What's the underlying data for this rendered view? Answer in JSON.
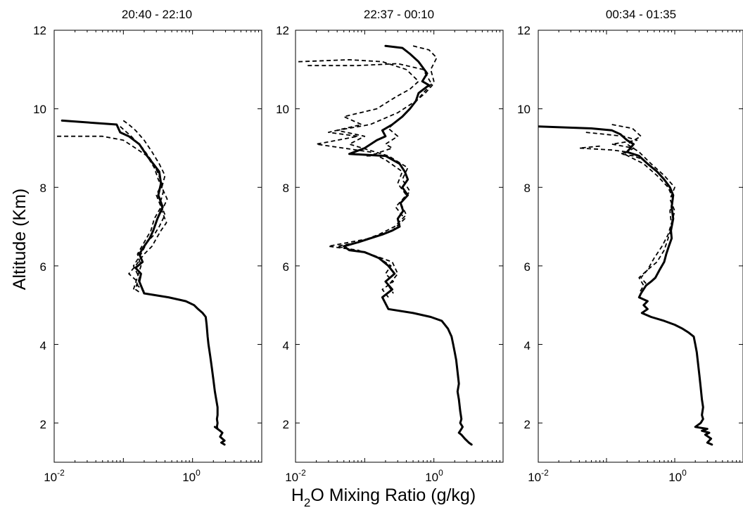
{
  "figure": {
    "ylabel": "Altitude (Km)",
    "xlabel_prefix": "H",
    "xlabel_sub": "2",
    "xlabel_suffix": "O Mixing Ratio (g/kg)"
  },
  "chart_data": [
    {
      "type": "line",
      "title": "20:40 - 22:10",
      "xscale": "log",
      "xlim": [
        0.01,
        10
      ],
      "ylim": [
        1,
        12
      ],
      "x_ticks": [
        {
          "base": "10",
          "exp": "-2"
        },
        {
          "base": "10",
          "exp": "0"
        }
      ],
      "y_ticks": [
        "2",
        "4",
        "6",
        "8",
        "10",
        "12"
      ],
      "series": [
        {
          "style": "solid",
          "x": [
            0.013,
            0.08,
            0.09,
            0.12,
            0.17,
            0.22,
            0.27,
            0.33,
            0.35,
            0.32,
            0.37,
            0.31,
            0.27,
            0.24,
            0.2,
            0.17,
            0.19,
            0.15,
            0.18,
            0.17,
            0.2,
            0.45,
            0.8,
            1.05,
            1.2,
            1.4,
            1.55,
            1.6,
            1.65,
            1.7,
            1.8,
            1.9,
            2.0,
            2.1,
            2.2,
            2.3,
            2.3,
            2.3,
            2.25,
            2.3,
            2.25,
            2.3,
            2.1,
            2.5,
            2.7,
            2.5,
            2.9,
            2.6,
            2.9
          ],
          "y": [
            9.7,
            9.6,
            9.4,
            9.3,
            9.1,
            8.8,
            8.6,
            8.4,
            8.1,
            7.8,
            7.5,
            7.2,
            6.9,
            6.7,
            6.5,
            6.3,
            6.1,
            5.95,
            5.8,
            5.6,
            5.3,
            5.2,
            5.1,
            5.0,
            4.9,
            4.8,
            4.7,
            4.5,
            4.2,
            4.0,
            3.7,
            3.4,
            3.1,
            2.8,
            2.6,
            2.4,
            2.3,
            2.2,
            2.1,
            2.0,
            1.9,
            1.85,
            1.9,
            1.8,
            1.75,
            1.65,
            1.55,
            1.5,
            1.45
          ]
        },
        {
          "style": "dashed",
          "x": [
            0.011,
            0.05,
            0.1,
            0.15,
            0.22,
            0.28,
            0.32,
            0.38,
            0.34,
            0.4,
            0.33,
            0.28,
            0.22,
            0.18,
            0.14,
            0.17,
            0.16,
            0.2
          ],
          "y": [
            9.3,
            9.3,
            9.2,
            9.0,
            8.8,
            8.5,
            8.2,
            7.9,
            7.6,
            7.3,
            7.0,
            6.8,
            6.6,
            6.3,
            6.0,
            5.7,
            5.5,
            5.35
          ]
        },
        {
          "style": "dashed",
          "x": [
            0.1,
            0.12,
            0.15,
            0.2,
            0.26,
            0.33,
            0.4,
            0.36,
            0.43,
            0.36,
            0.42,
            0.35,
            0.3,
            0.26,
            0.2,
            0.15,
            0.12,
            0.16,
            0.15,
            0.18
          ],
          "y": [
            9.7,
            9.6,
            9.45,
            9.2,
            8.9,
            8.6,
            8.3,
            8.0,
            7.7,
            7.4,
            7.1,
            6.9,
            6.7,
            6.5,
            6.3,
            6.0,
            5.8,
            5.6,
            5.4,
            5.3
          ]
        },
        {
          "style": "dashed",
          "x": [
            0.09,
            0.13,
            0.19,
            0.25,
            0.31,
            0.36,
            0.3,
            0.35,
            0.28,
            0.25,
            0.2,
            0.16,
            0.18,
            0.14
          ],
          "y": [
            9.55,
            9.3,
            9.0,
            8.7,
            8.4,
            8.1,
            7.8,
            7.5,
            7.2,
            6.9,
            6.6,
            6.3,
            6.0,
            5.4
          ]
        }
      ]
    },
    {
      "type": "line",
      "title": "22:37 - 00:10",
      "xscale": "log",
      "xlim": [
        0.01,
        10
      ],
      "ylim": [
        1,
        12
      ],
      "x_ticks": [
        {
          "base": "10",
          "exp": "-2"
        },
        {
          "base": "10",
          "exp": "0"
        }
      ],
      "y_ticks": [
        "2",
        "4",
        "6",
        "8",
        "10",
        "12"
      ],
      "series": [
        {
          "style": "solid",
          "x": [
            0.2,
            0.35,
            0.45,
            0.6,
            0.8,
            0.68,
            0.85,
            0.6,
            0.55,
            0.45,
            0.35,
            0.25,
            0.18,
            0.2,
            0.15,
            0.1,
            0.06,
            0.2,
            0.32,
            0.38,
            0.42,
            0.35,
            0.42,
            0.33,
            0.36,
            0.3,
            0.32,
            0.25,
            0.18,
            0.12,
            0.08,
            0.05,
            0.06,
            0.1,
            0.16,
            0.22,
            0.27,
            0.2,
            0.25,
            0.18,
            0.22,
            0.5,
            0.9,
            1.3,
            1.6,
            1.8,
            1.9,
            2.0,
            2.1,
            2.2,
            2.3,
            2.2,
            2.3,
            2.4,
            2.5,
            2.4,
            2.6,
            2.5,
            2.4,
            2.3,
            2.5,
            2.8,
            3.2,
            3.5
          ],
          "y": [
            11.6,
            11.55,
            11.4,
            11.2,
            10.9,
            10.7,
            10.6,
            10.4,
            10.2,
            10.0,
            9.8,
            9.6,
            9.45,
            9.3,
            9.2,
            9.0,
            8.85,
            8.8,
            8.6,
            8.4,
            8.2,
            8.0,
            7.8,
            7.6,
            7.4,
            7.2,
            7.0,
            6.9,
            6.8,
            6.7,
            6.6,
            6.5,
            6.4,
            6.35,
            6.2,
            6.0,
            5.8,
            5.6,
            5.4,
            5.2,
            4.9,
            4.8,
            4.7,
            4.6,
            4.4,
            4.2,
            4.0,
            3.8,
            3.6,
            3.3,
            3.0,
            2.8,
            2.6,
            2.3,
            2.1,
            2.0,
            1.9,
            1.85,
            1.8,
            1.75,
            1.7,
            1.6,
            1.5,
            1.45
          ]
        },
        {
          "style": "dashed",
          "x": [
            0.011,
            0.06,
            0.18,
            0.4,
            0.6,
            0.45,
            0.28,
            0.15,
            0.05,
            0.09,
            0.03,
            0.08,
            0.02,
            0.12,
            0.2,
            0.35,
            0.3,
            0.4,
            0.28,
            0.38,
            0.25,
            0.12,
            0.06,
            0.03,
            0.08,
            0.16,
            0.24,
            0.2,
            0.26,
            0.18,
            0.22
          ],
          "y": [
            11.2,
            11.25,
            11.2,
            11.0,
            10.7,
            10.5,
            10.3,
            10.0,
            9.8,
            9.6,
            9.4,
            9.3,
            9.1,
            8.9,
            8.7,
            8.4,
            8.1,
            7.8,
            7.5,
            7.2,
            6.9,
            6.7,
            6.6,
            6.5,
            6.4,
            6.2,
            6.0,
            5.8,
            5.6,
            5.4,
            5.2
          ]
        },
        {
          "style": "dashed",
          "x": [
            0.015,
            0.08,
            0.3,
            0.7,
            0.95,
            0.75,
            0.55,
            0.3,
            0.12,
            0.04,
            0.1,
            0.06,
            0.22,
            0.42,
            0.35,
            0.45,
            0.33,
            0.4,
            0.27,
            0.16,
            0.08,
            0.04,
            0.12,
            0.25,
            0.3,
            0.22,
            0.26
          ],
          "y": [
            11.1,
            11.1,
            11.15,
            11.0,
            10.6,
            10.4,
            10.2,
            9.9,
            9.6,
            9.45,
            9.3,
            9.1,
            8.8,
            8.5,
            8.2,
            7.9,
            7.6,
            7.3,
            7.0,
            6.8,
            6.6,
            6.5,
            6.3,
            6.1,
            5.8,
            5.5,
            5.3
          ]
        },
        {
          "style": "dashed",
          "x": [
            0.5,
            0.85,
            1.1,
            0.9,
            1.0,
            0.7,
            0.5,
            0.35,
            0.22,
            0.3,
            0.2,
            0.25,
            0.17,
            0.12,
            0.1
          ],
          "y": [
            11.6,
            11.5,
            11.3,
            11.0,
            10.7,
            10.4,
            10.1,
            9.8,
            9.5,
            9.3,
            9.1,
            9.0,
            8.9,
            8.8,
            8.8
          ]
        }
      ]
    },
    {
      "type": "line",
      "title": "00:34 - 01:35",
      "xscale": "log",
      "xlim": [
        0.01,
        10
      ],
      "ylim": [
        1,
        12
      ],
      "x_ticks": [
        {
          "base": "10",
          "exp": "-2"
        },
        {
          "base": "10",
          "exp": "0"
        }
      ],
      "y_ticks": [
        "2",
        "4",
        "6",
        "8",
        "10",
        "12"
      ],
      "series": [
        {
          "style": "solid",
          "x": [
            0.01,
            0.06,
            0.12,
            0.16,
            0.2,
            0.25,
            0.2,
            0.3,
            0.4,
            0.55,
            0.7,
            0.85,
            0.95,
            0.9,
            0.95,
            0.88,
            0.9,
            0.82,
            0.75,
            0.7,
            0.6,
            0.52,
            0.45,
            0.38,
            0.32,
            0.3,
            0.4,
            0.35,
            0.4,
            0.33,
            0.45,
            0.7,
            1.0,
            1.3,
            1.6,
            1.9,
            2.0,
            2.1,
            2.2,
            2.3,
            2.4,
            2.5,
            2.6,
            2.5,
            2.6,
            2.4,
            2.0,
            3.0,
            2.5,
            3.2,
            2.8,
            3.4,
            3.0,
            3.5
          ],
          "y": [
            9.55,
            9.5,
            9.45,
            9.35,
            9.2,
            9.1,
            8.9,
            8.8,
            8.6,
            8.4,
            8.2,
            8.0,
            7.8,
            7.5,
            7.2,
            6.9,
            6.7,
            6.5,
            6.3,
            6.1,
            5.9,
            5.7,
            5.6,
            5.5,
            5.3,
            5.2,
            5.1,
            5.0,
            4.9,
            4.8,
            4.7,
            4.6,
            4.5,
            4.4,
            4.3,
            4.2,
            4.0,
            3.8,
            3.5,
            3.2,
            2.9,
            2.6,
            2.4,
            2.2,
            2.1,
            2.0,
            1.9,
            1.85,
            1.8,
            1.75,
            1.7,
            1.6,
            1.5,
            1.45
          ]
        },
        {
          "style": "dashed",
          "x": [
            0.05,
            0.18,
            0.28,
            0.12,
            0.25,
            0.18,
            0.35,
            0.55,
            0.8,
            0.95,
            0.85,
            0.9,
            0.8,
            0.7,
            0.55,
            0.4,
            0.3,
            0.35,
            0.3
          ],
          "y": [
            9.4,
            9.3,
            9.2,
            9.1,
            9.0,
            8.85,
            8.6,
            8.3,
            8.0,
            7.7,
            7.4,
            7.0,
            6.7,
            6.4,
            6.1,
            5.9,
            5.7,
            5.5,
            5.3
          ]
        },
        {
          "style": "dashed",
          "x": [
            0.12,
            0.24,
            0.32,
            0.2,
            0.3,
            0.45,
            0.7,
            1.0,
            0.85,
            1.0,
            0.9,
            0.8,
            0.65,
            0.5,
            0.4,
            0.32,
            0.38
          ],
          "y": [
            9.6,
            9.5,
            9.3,
            9.1,
            8.9,
            8.6,
            8.3,
            8.0,
            7.7,
            7.4,
            7.1,
            6.8,
            6.5,
            6.2,
            5.9,
            5.7,
            5.55
          ]
        },
        {
          "style": "dashed",
          "x": [
            0.08,
            0.04,
            0.12,
            0.2,
            0.16,
            0.25,
            0.35
          ],
          "y": [
            9.05,
            9.0,
            8.95,
            8.9,
            8.85,
            8.8,
            8.7
          ]
        }
      ]
    }
  ]
}
